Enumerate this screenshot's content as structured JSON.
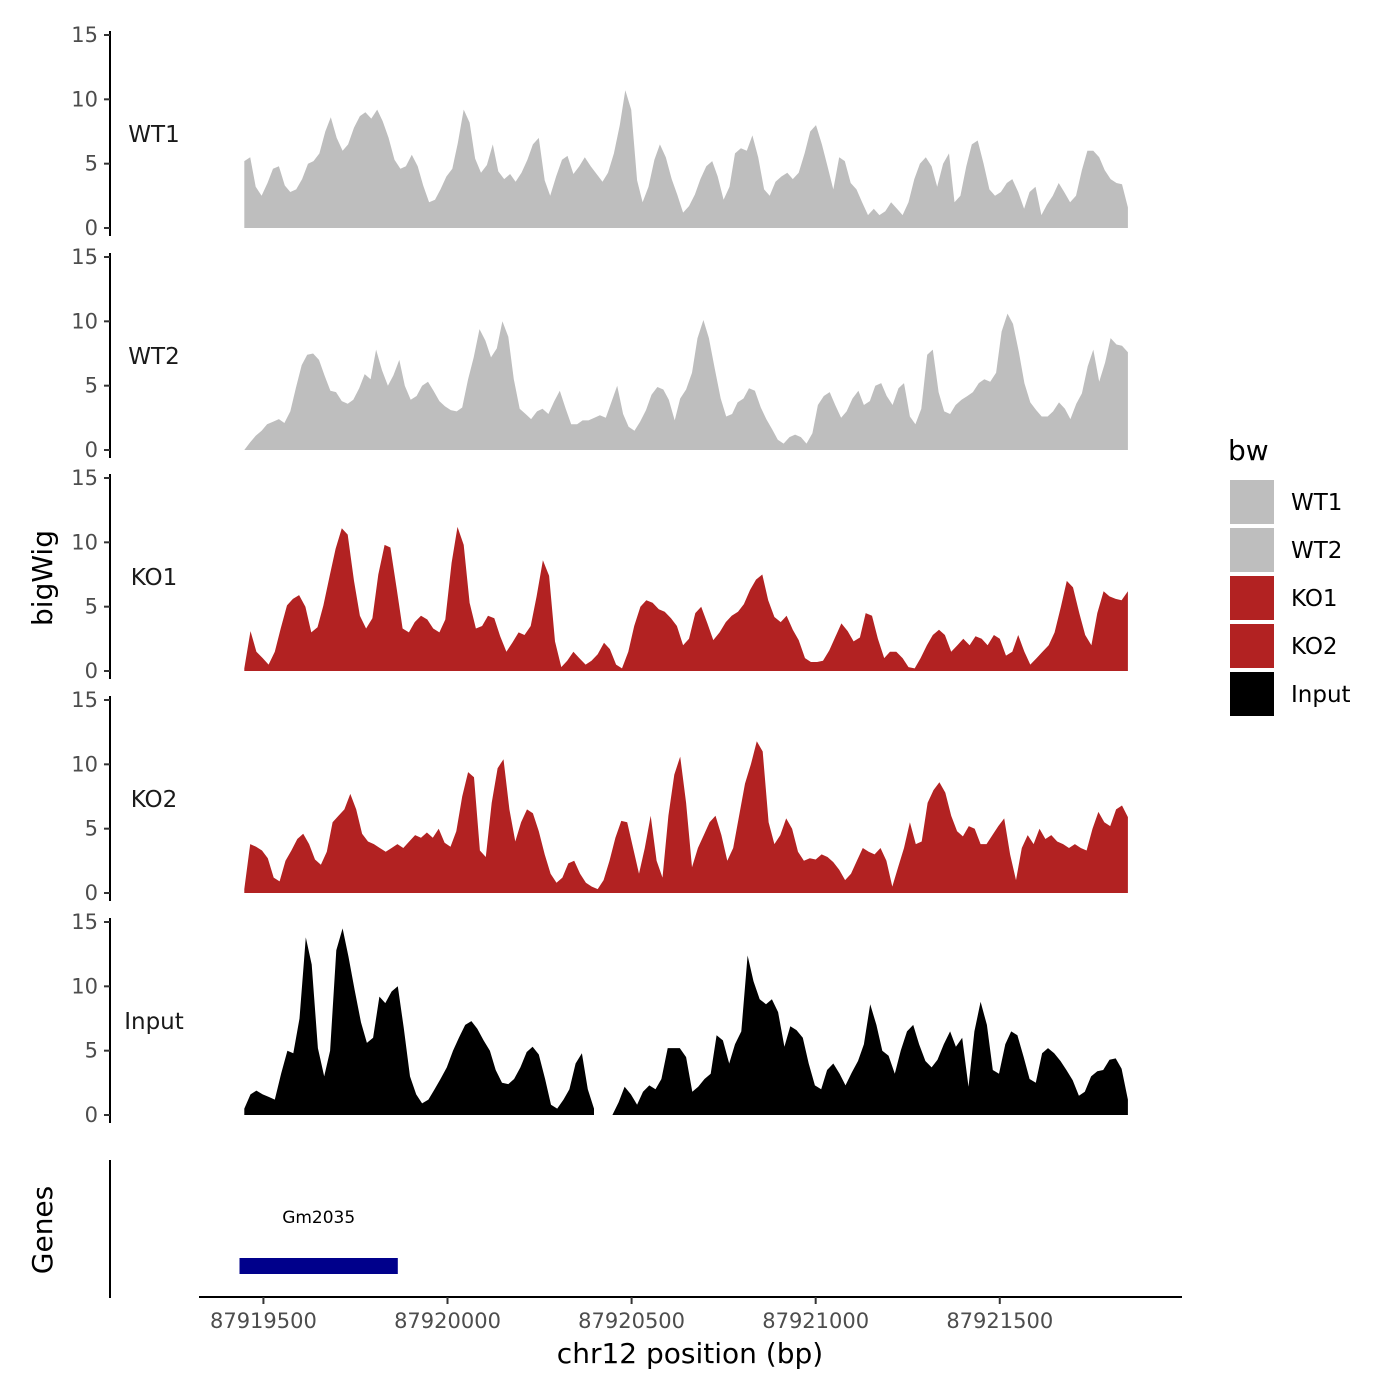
{
  "chart_data": {
    "type": "area",
    "ylabel": "bigWig",
    "xlabel": "chr12 position (bp)",
    "x_ticks": [
      87919500,
      87920000,
      87920500,
      87921000,
      87921500
    ],
    "x_tick_labels": [
      "87919500",
      "87920000",
      "87920500",
      "87921000",
      "87921500"
    ],
    "xlim": [
      87919325,
      87921995
    ],
    "x_start": 87919448,
    "x_end": 87921848,
    "ylim": [
      0,
      15
    ],
    "y_ticks": [
      0,
      5,
      10,
      15
    ],
    "y_tick_labels": [
      "0",
      "5",
      "10",
      "15"
    ],
    "legend": {
      "title": "bw",
      "position": "right",
      "entries": [
        {
          "label": "WT1",
          "color": "#BEBEBE"
        },
        {
          "label": "WT2",
          "color": "#BEBEBE"
        },
        {
          "label": "KO1",
          "color": "#B22222"
        },
        {
          "label": "KO2",
          "color": "#B22222"
        },
        {
          "label": "Input",
          "color": "#000000"
        }
      ]
    },
    "series": [
      {
        "name": "WT1",
        "color": "#BEBEBE",
        "values": [
          5.2,
          5.5,
          3.2,
          2.5,
          3.5,
          4.6,
          4.8,
          3.3,
          2.8,
          3.0,
          3.8,
          5.0,
          5.2,
          5.8,
          7.5,
          8.6,
          7.0,
          6.0,
          6.5,
          7.8,
          8.7,
          9.0,
          8.5,
          9.2,
          8.3,
          7.0,
          5.3,
          4.6,
          4.8,
          5.7,
          4.8,
          3.3,
          2.0,
          2.2,
          3.0,
          4.0,
          4.6,
          6.6,
          9.2,
          8.2,
          5.4,
          4.3,
          4.9,
          6.5,
          4.4,
          3.8,
          4.2,
          3.6,
          4.3,
          5.3,
          6.5,
          7.0,
          3.7,
          2.5,
          4.0,
          5.3,
          5.6,
          4.2,
          4.8,
          5.5,
          4.8,
          4.2,
          3.6,
          4.3,
          5.8,
          8.0,
          10.7,
          9.2,
          3.7,
          2.0,
          3.2,
          5.3,
          6.5,
          5.5,
          3.8,
          2.6,
          1.2,
          1.7,
          2.6,
          3.8,
          4.8,
          5.2,
          4.0,
          2.2,
          3.2,
          5.8,
          6.2,
          6.0,
          7.2,
          5.5,
          3.0,
          2.5,
          3.6,
          4.0,
          4.3,
          3.8,
          4.3,
          5.8,
          7.5,
          8.0,
          6.5,
          4.8,
          3.0,
          5.5,
          5.2,
          3.5,
          3.0,
          2.0,
          1.0,
          1.5,
          1.0,
          1.3,
          2.0,
          1.5,
          1.0,
          2.0,
          3.8,
          5.0,
          5.5,
          4.8,
          3.2,
          5.0,
          5.8,
          2.0,
          2.5,
          4.8,
          6.5,
          6.8,
          5.0,
          3.0,
          2.5,
          2.8,
          3.5,
          3.8,
          2.8,
          1.5,
          2.8,
          3.2,
          1.0,
          1.8,
          2.5,
          3.5,
          2.8,
          2.0,
          2.5,
          4.5,
          6.0,
          6.0,
          5.5,
          4.5,
          3.8,
          3.5,
          3.4,
          1.6
        ],
        "points": []
      },
      {
        "name": "WT2",
        "color": "#BEBEBE",
        "values": [
          0.0,
          0.6,
          1.1,
          1.5,
          2.0,
          2.2,
          2.4,
          2.1,
          3.0,
          4.8,
          6.6,
          7.4,
          7.5,
          7.0,
          5.8,
          4.6,
          4.5,
          3.8,
          3.6,
          3.9,
          4.8,
          5.9,
          5.5,
          7.8,
          6.2,
          5.0,
          5.8,
          7.0,
          5.0,
          3.9,
          4.2,
          5.0,
          5.3,
          4.6,
          3.8,
          3.4,
          3.1,
          3.0,
          3.3,
          5.5,
          7.2,
          9.4,
          8.5,
          7.2,
          7.9,
          10.0,
          8.8,
          5.5,
          3.2,
          2.8,
          2.4,
          3.0,
          3.2,
          2.8,
          3.8,
          4.6,
          3.2,
          2.0,
          2.0,
          2.3,
          2.3,
          2.5,
          2.7,
          2.5,
          3.7,
          5.0,
          2.8,
          1.8,
          1.5,
          2.2,
          3.1,
          4.3,
          4.9,
          4.7,
          3.9,
          2.3,
          4.0,
          4.7,
          6.0,
          8.7,
          10.1,
          8.7,
          6.3,
          4.0,
          2.6,
          2.8,
          3.7,
          4.0,
          4.8,
          4.6,
          3.3,
          2.4,
          1.6,
          0.8,
          0.5,
          1.0,
          1.2,
          1.0,
          0.5,
          1.3,
          3.5,
          4.2,
          4.5,
          3.5,
          2.5,
          3.0,
          4.0,
          4.6,
          3.5,
          3.8,
          5.0,
          5.2,
          4.2,
          3.5,
          4.8,
          5.2,
          2.6,
          2.0,
          3.2,
          7.4,
          7.8,
          4.5,
          3.0,
          2.8,
          3.5,
          3.9,
          4.2,
          4.5,
          5.2,
          5.5,
          5.3,
          6.0,
          9.2,
          10.6,
          9.8,
          7.6,
          5.2,
          3.7,
          3.1,
          2.6,
          2.6,
          3.0,
          3.7,
          3.2,
          2.4,
          3.6,
          4.4,
          6.5,
          7.8,
          5.3,
          6.8,
          8.7,
          8.2,
          8.1,
          7.6
        ],
        "points": []
      },
      {
        "name": "KO1",
        "color": "#B22222",
        "values": [
          0.2,
          3.1,
          1.5,
          1.0,
          0.5,
          1.5,
          3.3,
          5.1,
          5.6,
          5.9,
          5.0,
          3.0,
          3.4,
          5.1,
          7.4,
          9.5,
          11.1,
          10.6,
          7.0,
          4.3,
          3.3,
          4.1,
          7.5,
          9.8,
          9.6,
          6.4,
          3.3,
          3.0,
          3.8,
          4.3,
          4.0,
          3.3,
          3.0,
          4.0,
          8.4,
          11.2,
          9.8,
          5.3,
          3.3,
          3.5,
          4.3,
          4.1,
          2.7,
          1.5,
          2.2,
          3.0,
          2.8,
          3.5,
          5.8,
          8.6,
          7.4,
          2.3,
          0.3,
          0.8,
          1.5,
          1.0,
          0.5,
          0.8,
          1.3,
          2.2,
          1.7,
          0.5,
          0.2,
          1.5,
          3.5,
          5.0,
          5.5,
          5.3,
          4.8,
          4.6,
          4.1,
          3.5,
          2.0,
          2.5,
          4.5,
          5.0,
          3.7,
          2.4,
          3.0,
          3.8,
          4.3,
          4.6,
          5.2,
          6.3,
          7.1,
          7.5,
          5.5,
          4.2,
          3.8,
          4.3,
          3.2,
          2.4,
          1.0,
          0.7,
          0.7,
          0.8,
          1.6,
          2.7,
          3.7,
          3.1,
          2.3,
          2.6,
          4.5,
          4.3,
          2.5,
          1.0,
          1.5,
          1.5,
          1.0,
          0.3,
          0.2,
          1.0,
          2.0,
          2.8,
          3.2,
          2.8,
          1.5,
          2.0,
          2.5,
          2.0,
          2.7,
          2.5,
          2.0,
          2.8,
          2.5,
          1.2,
          1.5,
          2.8,
          1.5,
          0.5,
          1.0,
          1.5,
          2.0,
          3.0,
          5.0,
          7.0,
          6.5,
          4.5,
          2.8,
          2.0,
          4.5,
          6.2,
          5.8,
          5.6,
          5.5,
          6.2
        ],
        "points": []
      },
      {
        "name": "KO2",
        "color": "#B22222",
        "values": [
          0.3,
          3.8,
          3.6,
          3.3,
          2.7,
          1.2,
          0.9,
          2.5,
          3.3,
          4.2,
          4.6,
          3.8,
          2.6,
          2.2,
          3.2,
          5.5,
          6.0,
          6.5,
          7.7,
          6.5,
          4.6,
          4.0,
          3.8,
          3.5,
          3.2,
          3.5,
          3.8,
          3.5,
          4.0,
          4.5,
          4.3,
          4.7,
          4.3,
          5.0,
          3.9,
          3.6,
          4.8,
          7.5,
          9.4,
          9.0,
          3.3,
          2.8,
          7.0,
          9.7,
          10.4,
          6.5,
          4.0,
          5.5,
          6.5,
          6.2,
          4.8,
          3.0,
          1.5,
          0.8,
          1.2,
          2.3,
          2.5,
          1.5,
          0.8,
          0.5,
          0.3,
          1.0,
          2.5,
          4.3,
          5.6,
          5.5,
          3.5,
          1.5,
          3.5,
          6.0,
          2.5,
          1.2,
          6.0,
          9.2,
          10.6,
          7.0,
          2.0,
          3.5,
          4.5,
          5.5,
          6.0,
          4.5,
          2.5,
          3.5,
          6.0,
          8.5,
          10.0,
          11.8,
          11.0,
          5.5,
          3.8,
          4.5,
          5.8,
          5.0,
          3.2,
          2.5,
          2.7,
          2.6,
          3.0,
          2.8,
          2.4,
          1.8,
          1.0,
          1.5,
          2.5,
          3.5,
          3.2,
          3.0,
          3.5,
          2.5,
          0.5,
          2.0,
          3.5,
          5.5,
          3.8,
          4.0,
          7.0,
          8.0,
          8.6,
          7.8,
          6.0,
          4.8,
          4.4,
          5.2,
          5.0,
          3.8,
          3.8,
          4.5,
          5.2,
          5.8,
          3.0,
          1.0,
          3.5,
          4.5,
          3.8,
          5.0,
          4.2,
          4.5,
          4.0,
          3.8,
          3.5,
          3.8,
          3.5,
          3.3,
          5.0,
          6.3,
          5.5,
          5.2,
          6.5,
          6.8,
          5.9
        ],
        "points": []
      },
      {
        "name": "Input",
        "color": "#000000",
        "values": [
          0.5,
          1.6,
          1.9,
          1.6,
          1.4,
          1.2,
          3.2,
          5.0,
          4.8,
          7.5,
          13.8,
          11.7,
          5.2,
          3.0,
          5.0,
          12.8,
          14.5,
          12.3,
          9.7,
          7.2,
          5.6,
          6.0,
          9.2,
          8.7,
          9.6,
          10.0,
          6.8,
          3.0,
          1.6,
          0.9,
          1.2,
          2.0,
          2.8,
          3.7,
          5.0,
          6.0,
          7.0,
          7.3,
          6.7,
          5.8,
          5.0,
          3.5,
          2.5,
          2.4,
          2.8,
          3.7,
          4.9,
          5.3,
          4.7,
          2.8,
          0.8,
          0.5,
          1.2,
          2.0,
          4.0,
          4.8,
          2.0,
          0.5,
          null,
          null,
          0.0,
          1.0,
          2.2,
          1.6,
          0.8,
          1.8,
          2.3,
          2.0,
          2.8,
          5.2,
          5.2,
          5.2,
          4.5,
          1.8,
          2.2,
          2.8,
          3.2,
          6.2,
          5.8,
          4.0,
          5.5,
          6.5,
          12.4,
          10.4,
          9.0,
          8.6,
          9.0,
          8.0,
          5.3,
          6.9,
          6.6,
          6.0,
          4.0,
          2.3,
          2.0,
          3.5,
          4.0,
          3.2,
          2.3,
          3.3,
          4.2,
          5.5,
          8.6,
          7.0,
          5.0,
          4.6,
          3.2,
          5.0,
          6.5,
          7.0,
          5.5,
          4.2,
          3.7,
          4.3,
          5.5,
          6.5,
          5.3,
          6.0,
          2.2,
          6.5,
          8.8,
          7.0,
          3.5,
          3.2,
          5.5,
          6.5,
          6.2,
          4.5,
          2.8,
          2.5,
          4.8,
          5.2,
          4.8,
          4.2,
          3.5,
          2.7,
          1.5,
          1.8,
          3.0,
          3.4,
          3.5,
          4.3,
          4.4,
          3.6,
          1.2
        ],
        "points": []
      }
    ],
    "track_labels": [
      "WT1",
      "WT2",
      "KO1",
      "KO2",
      "Input"
    ],
    "genes_panel": {
      "ylabel": "Genes",
      "genes": [
        {
          "name": "Gm2035",
          "start": 87919435,
          "end": 87919865,
          "color": "#00008B"
        }
      ]
    }
  }
}
